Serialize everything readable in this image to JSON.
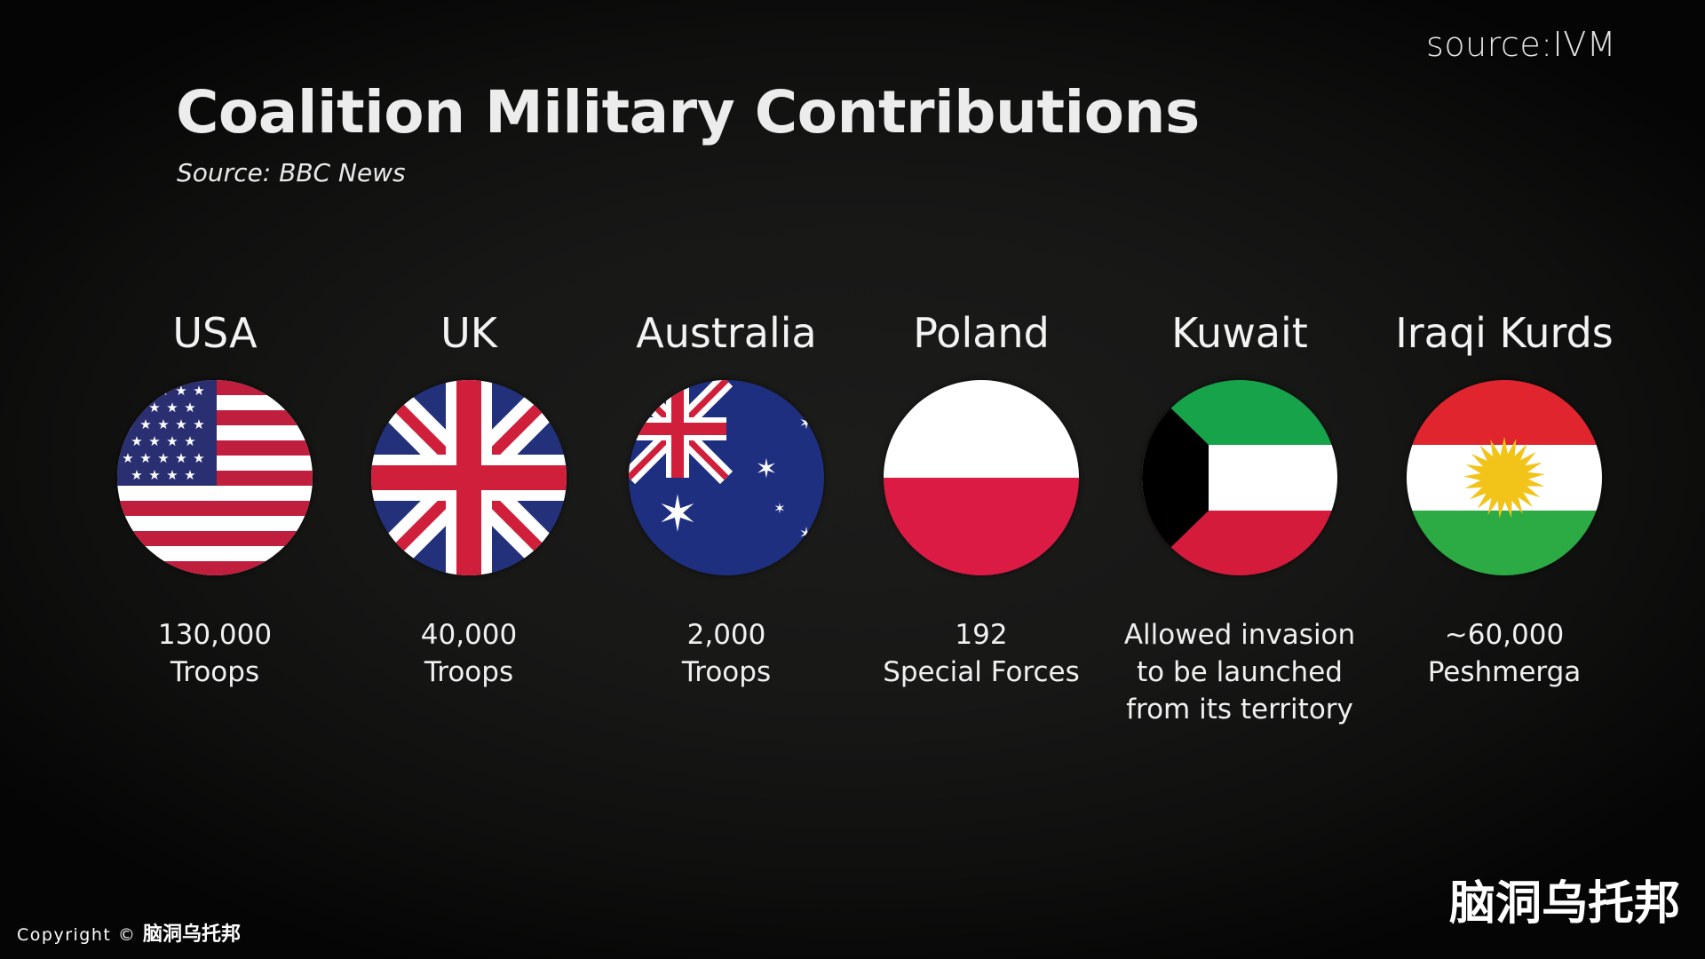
{
  "source_tag": "source:IVM",
  "title": "Coalition Military Contributions",
  "subtitle": "Source: BBC News",
  "countries": [
    {
      "name": "USA",
      "stat_lines": [
        "130,000",
        "Troops"
      ],
      "flag_icon": "usa-flag-icon"
    },
    {
      "name": "UK",
      "stat_lines": [
        "40,000",
        "Troops"
      ],
      "flag_icon": "uk-flag-icon"
    },
    {
      "name": "Australia",
      "stat_lines": [
        "2,000",
        "Troops"
      ],
      "flag_icon": "australia-flag-icon"
    },
    {
      "name": "Poland",
      "stat_lines": [
        "192",
        "Special Forces"
      ],
      "flag_icon": "poland-flag-icon"
    },
    {
      "name": "Kuwait",
      "stat_lines": [
        "Allowed invasion",
        "to be launched",
        "from its territory"
      ],
      "flag_icon": "kuwait-flag-icon"
    },
    {
      "name": "Iraqi Kurds",
      "stat_lines": [
        "~60,000",
        "Peshmerga"
      ],
      "flag_icon": "kurdistan-flag-icon"
    }
  ],
  "copyright": {
    "label": "Copyright",
    "symbol": "©",
    "brand": "脑洞乌托邦"
  },
  "watermark": "脑洞乌托邦",
  "colors": {
    "background": "#141413",
    "text": "#f2f2f2",
    "us_red": "#bf1f3c",
    "us_blue": "#2a2f72",
    "uk_blue": "#22317a",
    "uk_red": "#cf1f3a",
    "au_blue": "#1f2f7f",
    "pl_red": "#dc1b45",
    "kw_green": "#17a34a",
    "kw_red": "#d51b3b",
    "kurd_red": "#e0252e",
    "kurd_green": "#2caa44",
    "kurd_sun": "#f2c318"
  }
}
